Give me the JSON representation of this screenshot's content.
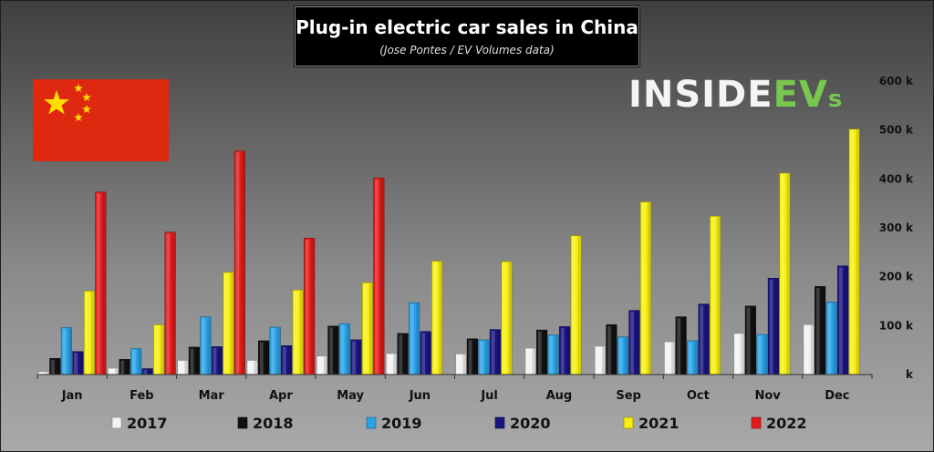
{
  "header": {
    "title": "Plug-in electric car sales in China",
    "subtitle": "(Jose Pontes / EV Volumes data)"
  },
  "brand": {
    "part1": "INSIDE",
    "part2": "EV",
    "part3": "s"
  },
  "chart_data": {
    "type": "bar",
    "categories": [
      "Jan",
      "Feb",
      "Mar",
      "Apr",
      "May",
      "Jun",
      "Jul",
      "Aug",
      "Sep",
      "Oct",
      "Nov",
      "Dec"
    ],
    "ylim": [
      0,
      600
    ],
    "yticks": [
      {
        "value": 0,
        "label": "k"
      },
      {
        "value": 100,
        "label": "100 k"
      },
      {
        "value": 200,
        "label": "200 k"
      },
      {
        "value": 300,
        "label": "300 k"
      },
      {
        "value": 400,
        "label": "400 k"
      },
      {
        "value": 500,
        "label": "500 k"
      },
      {
        "value": 600,
        "label": "600 k"
      }
    ],
    "grid": false,
    "legend_position": "bottom",
    "unit": "thousands",
    "series": [
      {
        "name": "2017",
        "color": "#f2f2f2",
        "values": [
          6,
          13,
          29,
          29,
          38,
          43,
          42,
          54,
          58,
          67,
          84,
          102
        ]
      },
      {
        "name": "2018",
        "color": "#111111",
        "values": [
          33,
          31,
          56,
          69,
          99,
          84,
          73,
          91,
          102,
          118,
          140,
          180
        ]
      },
      {
        "name": "2019",
        "color": "#29a3e6",
        "values": [
          96,
          53,
          118,
          97,
          104,
          147,
          71,
          81,
          77,
          69,
          82,
          148
        ]
      },
      {
        "name": "2020",
        "color": "#1a1480",
        "values": [
          47,
          12,
          57,
          59,
          71,
          88,
          92,
          98,
          131,
          144,
          197,
          222
        ]
      },
      {
        "name": "2021",
        "color": "#f5ef12",
        "values": [
          171,
          102,
          209,
          173,
          188,
          232,
          231,
          284,
          353,
          324,
          412,
          502
        ]
      },
      {
        "name": "2022",
        "color": "#e21b1b",
        "values": [
          373,
          291,
          457,
          279,
          402,
          null,
          null,
          null,
          null,
          null,
          null,
          null
        ]
      }
    ]
  }
}
